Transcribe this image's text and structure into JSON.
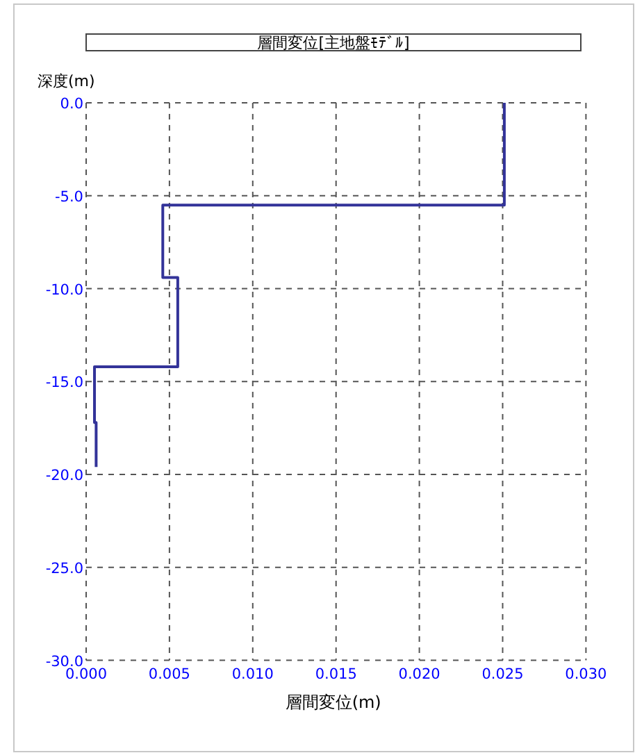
{
  "chart_data": {
    "type": "line",
    "title": "層間変位[主地盤ﾓﾃﾞﾙ]",
    "xlabel": "層間変位(m)",
    "ylabel": "深度(m)",
    "x": [
      0.0251,
      0.0251,
      0.0046,
      0.0046,
      0.0055,
      0.0055,
      0.0005,
      0.0005,
      0.0006,
      0.0006
    ],
    "series": [
      {
        "color": "#333399",
        "values": [
          0,
          -5.5,
          -5.5,
          -9.4,
          -9.4,
          -14.2,
          -14.2,
          -17.2,
          -17.2,
          -19.6
        ]
      }
    ],
    "xlim": [
      0,
      0.03
    ],
    "ylim": [
      -30,
      0
    ],
    "xticks": [
      {
        "value": 0,
        "label": "0.000"
      },
      {
        "value": 0.005,
        "label": "0.005"
      },
      {
        "value": 0.01,
        "label": "0.010"
      },
      {
        "value": 0.015,
        "label": "0.015"
      },
      {
        "value": 0.02,
        "label": "0.020"
      },
      {
        "value": 0.025,
        "label": "0.025"
      },
      {
        "value": 0.03,
        "label": "0.030"
      }
    ],
    "yticks": [
      {
        "value": 0,
        "label": "0.0"
      },
      {
        "value": -5,
        "label": "-5.0"
      },
      {
        "value": -10,
        "label": "-10.0"
      },
      {
        "value": -15,
        "label": "-15.0"
      },
      {
        "value": -20,
        "label": "-20.0"
      },
      {
        "value": -25,
        "label": "-25.0"
      },
      {
        "value": -30,
        "label": "-30.0"
      }
    ],
    "grid": true,
    "marker": "none",
    "line_style": "solid"
  }
}
